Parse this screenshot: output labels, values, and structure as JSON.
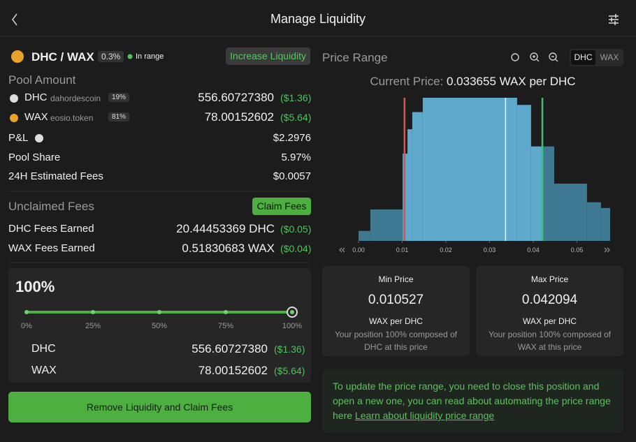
{
  "header": {
    "title": "Manage Liquidity"
  },
  "position": {
    "pair": "DHC / WAX",
    "fee": "0.3%",
    "status": "In range",
    "increase_button": "Increase Liquidity"
  },
  "pool_amount": {
    "title": "Pool Amount",
    "tokens": [
      {
        "symbol": "DHC",
        "contract": "dahordescoin",
        "share": "19%",
        "amount": "556.60727380",
        "usd": "($1.36)"
      },
      {
        "symbol": "WAX",
        "contract": "eosio.token",
        "share": "81%",
        "amount": "78.00152602",
        "usd": "($5.64)"
      }
    ],
    "rows": [
      {
        "label": "P&L",
        "value": "$2.2976"
      },
      {
        "label": "Pool Share",
        "value": "5.97%"
      },
      {
        "label": "24H Estimated Fees",
        "value": "$0.0057"
      }
    ]
  },
  "unclaimed": {
    "title": "Unclaimed Fees",
    "button": "Claim Fees",
    "rows": [
      {
        "label": "DHC Fees Earned",
        "amount": "20.44453369 DHC",
        "usd": "($0.05)"
      },
      {
        "label": "WAX Fees Earned",
        "amount": "0.51830683 WAX",
        "usd": "($0.04)"
      }
    ]
  },
  "remove": {
    "percent": "100%",
    "slider_ticks": [
      "0%",
      "25%",
      "50%",
      "75%",
      "100%"
    ],
    "tokens": [
      {
        "symbol": "DHC",
        "amount": "556.60727380",
        "usd": "($1.36)"
      },
      {
        "symbol": "WAX",
        "amount": "78.00152602",
        "usd": "($5.64)"
      }
    ],
    "button": "Remove Liquidity and Claim Fees"
  },
  "price_range": {
    "title": "Price Range",
    "toggle": [
      "DHC",
      "WAX"
    ],
    "current_price_label": "Current Price:",
    "current_price": 0.033655,
    "current_price_unit": "WAX per DHC",
    "chart": {
      "type": "histogram",
      "bins": [
        0,
        0.0027,
        0.0101,
        0.0112,
        0.0123,
        0.0147,
        0.0363,
        0.0395,
        0.0421,
        0.0448,
        0.0523,
        0.0555,
        0.0576
      ],
      "values": [
        7,
        22,
        61,
        78,
        90,
        100,
        95,
        66,
        66,
        40,
        27,
        23
      ],
      "xlim": [
        0,
        0.0576
      ],
      "ylim": [
        0,
        100
      ],
      "xticks": [
        {
          "value": 0,
          "label": "0.00"
        },
        0.01,
        0.02,
        0.03,
        0.04,
        0.05
      ],
      "in_range_color": "#5ea9cc",
      "out_range_color": "#3e7891"
    },
    "min": {
      "title": "Min Price",
      "value": 0.010527,
      "unit": "WAX per DHC",
      "note": "Your position 100% composed of DHC at this price"
    },
    "max": {
      "title": "Max Price",
      "value": 0.042094,
      "unit": "WAX per DHC",
      "note": "Your position 100% composed of WAX at this price"
    },
    "notice": {
      "text": "To update the price range, you need to close this position and open a new one, you can read about automating the price range here ",
      "link": "Learn about liquidity price range"
    }
  }
}
